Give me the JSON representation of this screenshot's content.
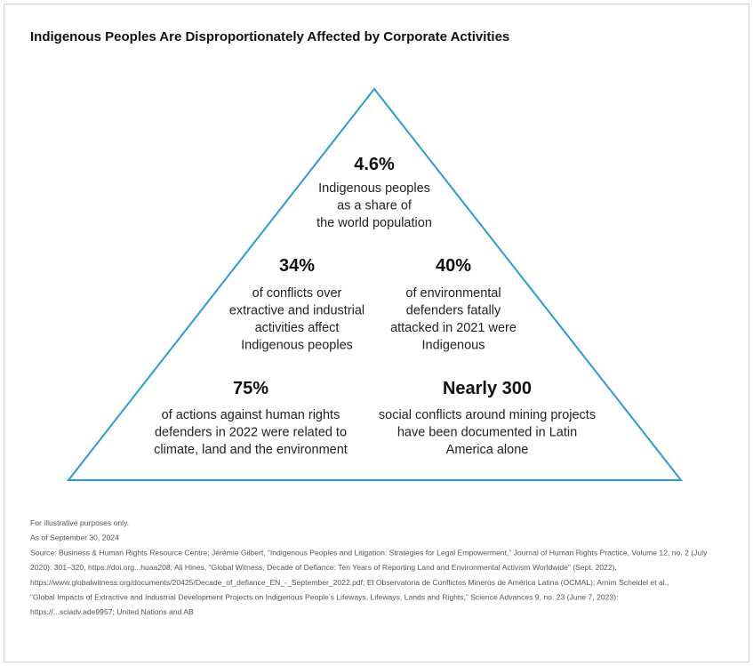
{
  "title": "Indigenous Peoples Are Disproportionately Affected by Corporate Activities",
  "stats": [
    {
      "value": "4.6%",
      "lines": [
        "Indigenous peoples",
        "as a share of",
        "the world population"
      ]
    },
    {
      "value": "34%",
      "lines": [
        "of conflicts over",
        "extractive and industrial",
        "activities affect",
        "Indigenous peoples"
      ]
    },
    {
      "value": "40%",
      "lines": [
        "of environmental",
        "defenders fatally",
        "attacked in 2021 were",
        "Indigenous"
      ]
    },
    {
      "value": "75%",
      "lines": [
        "of actions against human rights",
        "defenders in 2022 were related to",
        "climate, land and the environment"
      ]
    },
    {
      "value": "Nearly 300",
      "lines": [
        "social conflicts around mining projects",
        "have been documented in Latin",
        "America alone"
      ]
    }
  ],
  "footnotes": [
    "For illustrative purposes only.",
    "As of September 30, 2024",
    "Source: Business & Human Rights Resource Centre; Jérémie Gilbert, “Indigenous Peoples and Litigation: Strategies for Legal Empowerment,” Journal of Human Rights Practice, Volume 12, no. 2 (July",
    "2020): 301–320, https://doi.org...huaa208; Ali Hines, “Global Witness, Decade of Defiance: Ten Years of Reporting Land and Environmental Activism Worldwide” (Sept. 2022),",
    "https://www.globalwitness.org/documents/20425/Decade_of_defiance_EN_-_September_2022.pdf; El Observatoria de Conflictos Mineros de América Latina (OCMAL); Arnim Scheidel et al.,",
    "“Global Impacts of Extractive and Industrial Development Projects on Indigenous People’s Lifeways, Lifeways, Lands and Rights,” Science Advances 9, no. 23 (June 7, 2023):",
    "https://...sciadv.ade9957; United Nations and AB"
  ]
}
